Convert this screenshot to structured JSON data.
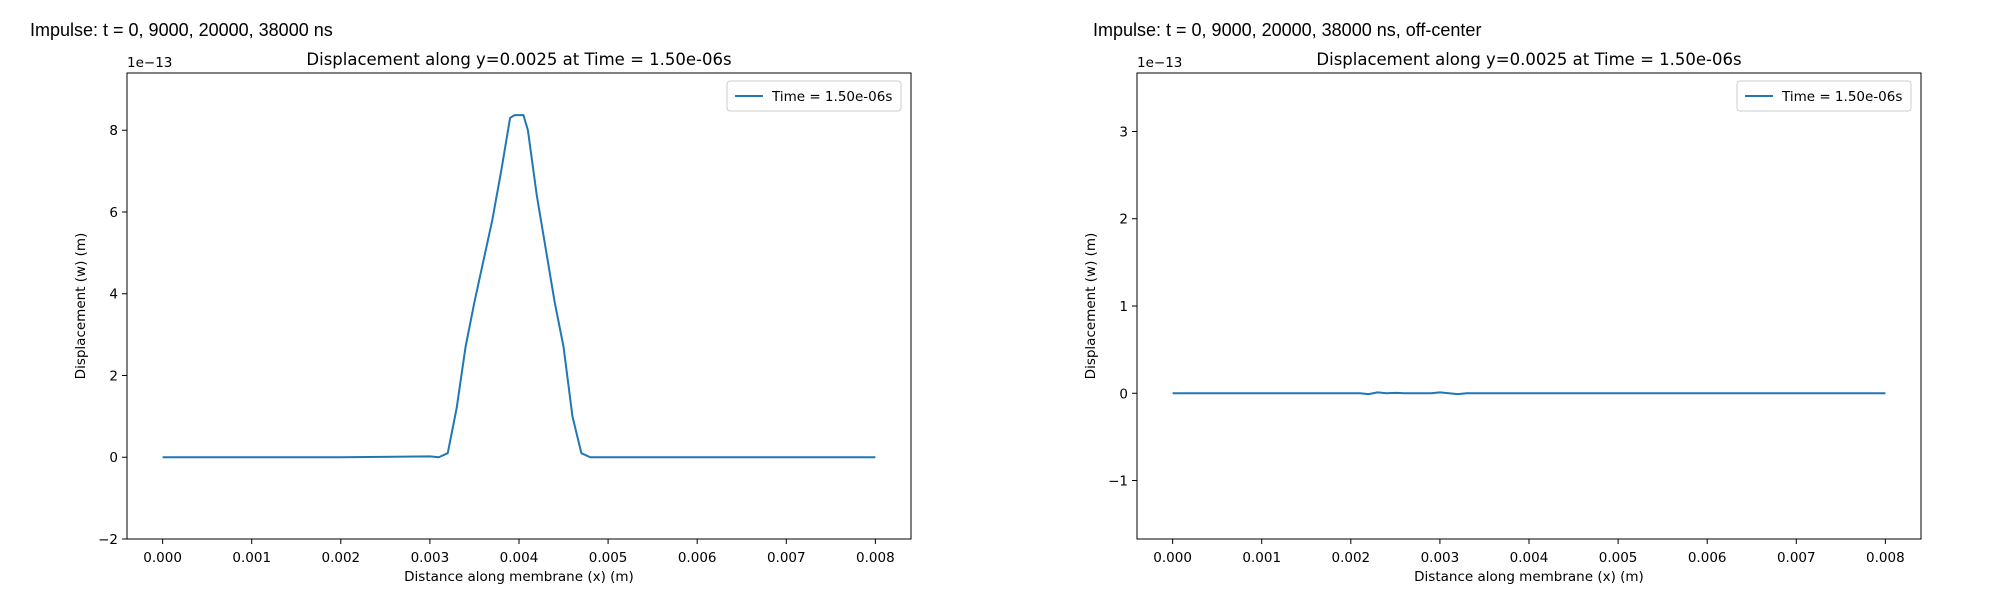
{
  "panels": [
    {
      "heading": "Impulse: t = 0, 9000, 20000, 38000 ns",
      "chart_data": {
        "type": "line",
        "title": "Displacement along y=0.0025 at Time = 1.50e-06s",
        "xlabel": "Distance along membrane (x) (m)",
        "ylabel": "Displacement (w) (m)",
        "offset_text": "1e−13",
        "xlim": [
          -0.0004,
          0.0084
        ],
        "ylim": [
          -2,
          9.4
        ],
        "xticks": [
          0,
          0.001,
          0.002,
          0.003,
          0.004,
          0.005,
          0.006,
          0.007,
          0.008
        ],
        "xtick_labels": [
          "0.000",
          "0.001",
          "0.002",
          "0.003",
          "0.004",
          "0.005",
          "0.006",
          "0.007",
          "0.008"
        ],
        "yticks": [
          -2,
          0,
          2,
          4,
          6,
          8
        ],
        "ytick_labels": [
          "−2",
          "0",
          "2",
          "4",
          "6",
          "8"
        ],
        "legend_position": "top-right",
        "grid": false,
        "series": [
          {
            "name": "Time = 1.50e-06s",
            "color": "#1f77b4",
            "x": [
              0,
              0.001,
              0.002,
              0.003,
              0.0031,
              0.0032,
              0.0033,
              0.0034,
              0.0035,
              0.0036,
              0.0037,
              0.0038,
              0.0039,
              0.00395,
              0.00405,
              0.0041,
              0.0042,
              0.0043,
              0.0044,
              0.0045,
              0.0046,
              0.0047,
              0.0048,
              0.0049,
              0.005,
              0.006,
              0.007,
              0.008
            ],
            "y": [
              0,
              0,
              0,
              0.02,
              0.0,
              0.1,
              1.2,
              2.7,
              3.8,
              4.8,
              5.8,
              7.0,
              8.3,
              8.37,
              8.37,
              8.0,
              6.4,
              5.1,
              3.8,
              2.7,
              1.0,
              0.1,
              0.0,
              0.0,
              0,
              0,
              0,
              0
            ]
          }
        ]
      }
    },
    {
      "heading": "Impulse: t = 0, 9000, 20000, 38000 ns, off-center",
      "chart_data": {
        "type": "line",
        "title": "Displacement along y=0.0025 at Time = 1.50e-06s",
        "xlabel": "Distance along membrane (x) (m)",
        "ylabel": "Displacement (w) (m)",
        "offset_text": "1e−13",
        "xlim": [
          -0.0004,
          0.0084
        ],
        "ylim": [
          -1.67,
          3.67
        ],
        "xticks": [
          0,
          0.001,
          0.002,
          0.003,
          0.004,
          0.005,
          0.006,
          0.007,
          0.008
        ],
        "xtick_labels": [
          "0.000",
          "0.001",
          "0.002",
          "0.003",
          "0.004",
          "0.005",
          "0.006",
          "0.007",
          "0.008"
        ],
        "yticks": [
          -1,
          0,
          1,
          2,
          3
        ],
        "ytick_labels": [
          "−1",
          "0",
          "1",
          "2",
          "3"
        ],
        "legend_position": "top-right",
        "grid": false,
        "series": [
          {
            "name": "Time = 1.50e-06s",
            "color": "#1f77b4",
            "x": [
              0,
              0.001,
              0.002,
              0.0021,
              0.0022,
              0.0023,
              0.0024,
              0.0025,
              0.0026,
              0.0027,
              0.0028,
              0.0029,
              0.003,
              0.0031,
              0.0032,
              0.0033,
              0.004,
              0.005,
              0.006,
              0.007,
              0.008
            ],
            "y": [
              0,
              0,
              0,
              0,
              -0.01,
              0.01,
              0.0,
              0.005,
              0.0,
              0.0,
              0.0,
              0.0,
              0.01,
              0.0,
              -0.01,
              0.0,
              0,
              0,
              0,
              0,
              0
            ]
          }
        ]
      }
    }
  ]
}
